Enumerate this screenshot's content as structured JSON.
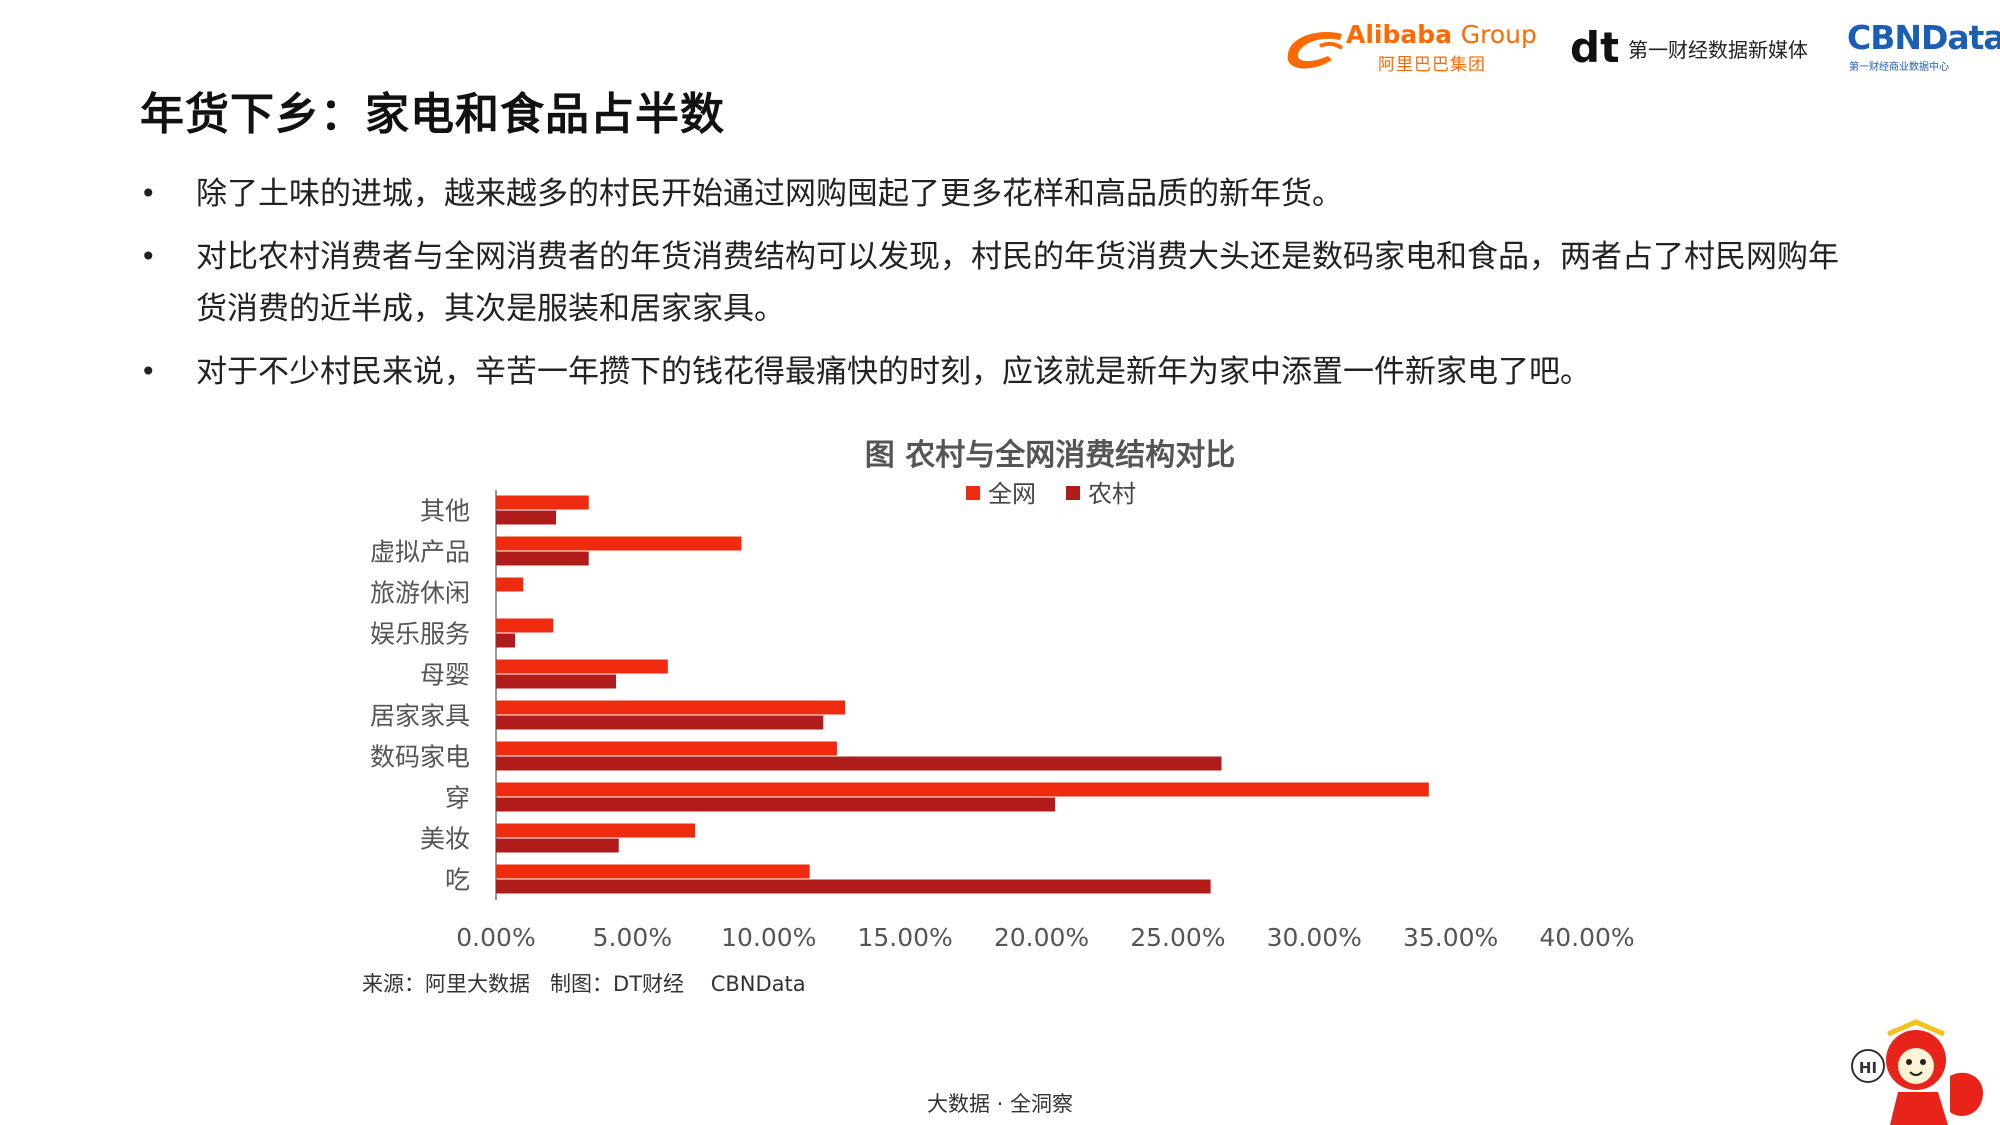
{
  "page": {
    "title": "年货下乡：家电和食品占半数",
    "bullets": [
      "除了土味的进城，越来越多的村民开始通过网购囤起了更多花样和高品质的新年货。",
      "对比农村消费者与全网消费者的年货消费结构可以发现，村民的年货消费大头还是数码家电和食品，两者占了村民网购年货消费的近半成，其次是服装和居家家具。",
      "对于不少村民来说，辛苦一年攒下的钱花得最痛快的时刻，应该就是新年为家中添置一件新家电了吧。"
    ],
    "bullet_marker": "•",
    "source": "来源：阿里大数据   制图：DT财经    CBNData",
    "footer": "大数据 · 全洞察"
  },
  "logos": {
    "alibaba_name": "Alibaba",
    "alibaba_group": "Group",
    "alibaba_cn": "阿里巴巴集团",
    "dt_mark": "dt",
    "dt_text": "第一财经数据新媒体",
    "cbn_name": "CBNData",
    "cbn_sub": "第一财经商业数据中心",
    "mascot_text": "HI"
  },
  "colors": {
    "quanwang": "#ee2b0f",
    "nongcun": "#b01c1a",
    "axis": "#9a9a9a",
    "alibaba_orange": "#ff6a00",
    "cbn_blue": "#1b5fb4"
  },
  "chart_data": {
    "type": "bar",
    "orientation": "horizontal",
    "title": "图 农村与全网消费结构对比",
    "categories": [
      "其他",
      "虚拟产品",
      "旅游休闲",
      "娱乐服务",
      "母婴",
      "居家家具",
      "数码家电",
      "穿",
      "美妆",
      "吃"
    ],
    "series": [
      {
        "name": "全网",
        "color": "#ee2b0f",
        "values": [
          3.4,
          9.0,
          1.0,
          2.1,
          6.3,
          12.8,
          12.5,
          34.2,
          7.3,
          11.5
        ]
      },
      {
        "name": "农村",
        "color": "#b01c1a",
        "values": [
          2.2,
          3.4,
          0,
          0.7,
          4.4,
          12.0,
          26.6,
          20.5,
          4.5,
          26.2
        ]
      }
    ],
    "xlim": [
      0,
      40
    ],
    "xticks": [
      "0.00%",
      "5.00%",
      "10.00%",
      "15.00%",
      "20.00%",
      "25.00%",
      "30.00%",
      "35.00%",
      "40.00%"
    ],
    "legend_position": "top",
    "grid": false
  }
}
